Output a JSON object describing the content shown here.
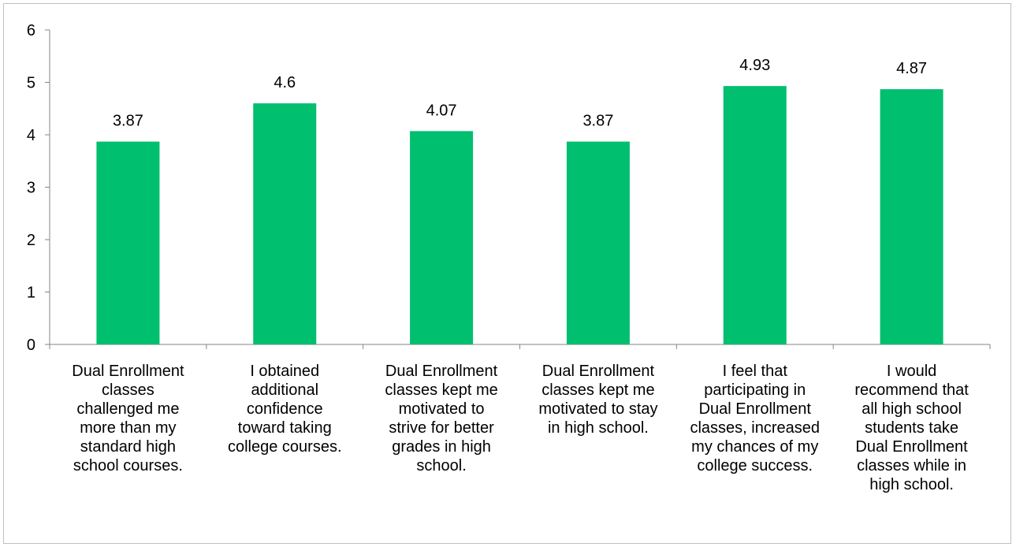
{
  "chart_data": {
    "type": "bar",
    "categories": [
      "Dual Enrollment\nclasses\nchallenged me\nmore than my\nstandard high\nschool courses.",
      "I obtained\nadditional\nconfidence\ntoward taking\ncollege courses.",
      "Dual Enrollment\nclasses kept me\nmotivated to\nstrive for better\ngrades in high\nschool.",
      "Dual Enrollment\nclasses kept me\nmotivated to stay\nin high school.",
      "I feel that\nparticipating in\nDual Enrollment\nclasses, increased\nmy chances of my\ncollege success.",
      "I would\nrecommend that\nall high school\nstudents take\nDual Enrollment\nclasses while in\nhigh school."
    ],
    "values": [
      3.87,
      4.6,
      4.07,
      3.87,
      4.93,
      4.87
    ],
    "data_labels": [
      "3.87",
      "4.6",
      "4.07",
      "3.87",
      "4.93",
      "4.87"
    ],
    "y_ticks": [
      "0",
      "1",
      "2",
      "3",
      "4",
      "5",
      "6"
    ],
    "ylim": [
      0,
      6
    ],
    "bar_color": "#00bf6f",
    "grid": false,
    "legend": "none"
  }
}
